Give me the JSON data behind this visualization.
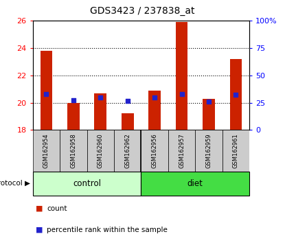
{
  "title": "GDS3423 / 237838_at",
  "samples": [
    "GSM162954",
    "GSM162958",
    "GSM162960",
    "GSM162962",
    "GSM162956",
    "GSM162957",
    "GSM162959",
    "GSM162961"
  ],
  "count_values": [
    23.8,
    20.0,
    20.7,
    19.2,
    20.9,
    25.9,
    20.3,
    23.2
  ],
  "percentile_values": [
    33,
    27,
    30,
    26.5,
    30,
    33,
    26,
    32
  ],
  "count_base": 18,
  "ylim_left": [
    18,
    26
  ],
  "ylim_right": [
    0,
    100
  ],
  "yticks_left": [
    18,
    20,
    22,
    24,
    26
  ],
  "yticks_right": [
    0,
    25,
    50,
    75,
    100
  ],
  "ytick_labels_right": [
    "0",
    "25",
    "50",
    "75",
    "100%"
  ],
  "bar_color": "#cc2200",
  "marker_color": "#2222cc",
  "bar_width": 0.45,
  "group_control_color": "#ccffcc",
  "group_diet_color": "#44dd44",
  "protocol_label": "protocol",
  "legend_count_label": "count",
  "legend_percentile_label": "percentile rank within the sample",
  "sample_box_color": "#cccccc",
  "background_color": "#ffffff",
  "n_control": 4,
  "n_diet": 4
}
